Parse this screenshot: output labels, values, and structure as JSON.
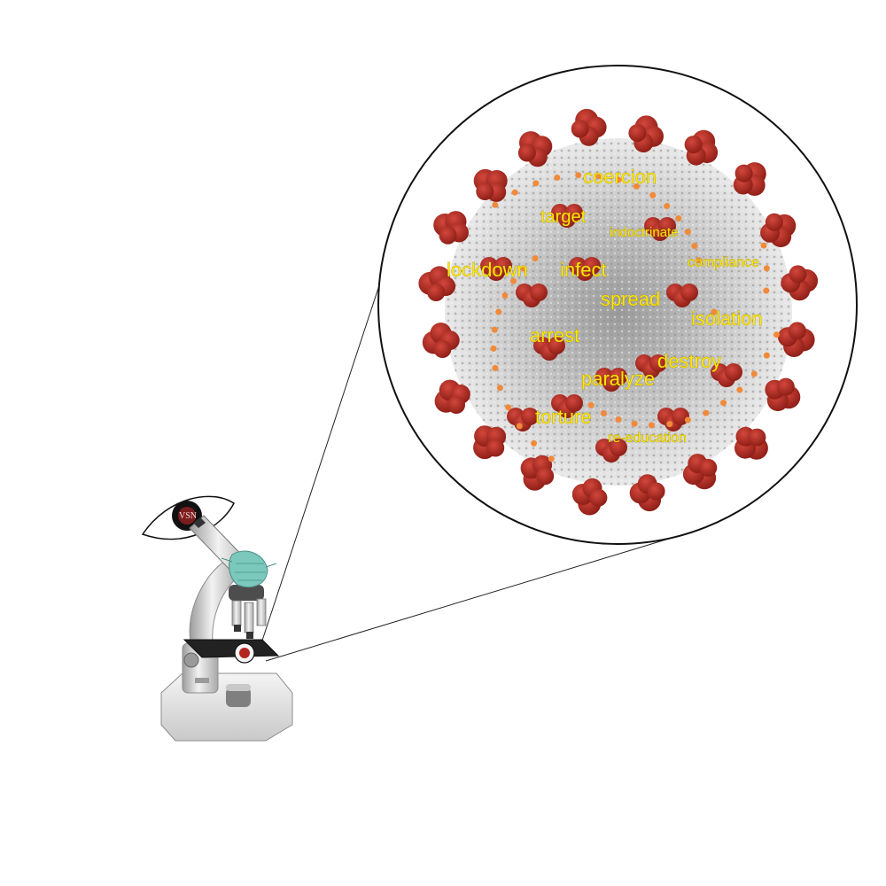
{
  "eye_label": "VSN",
  "words": [
    {
      "id": "coercion",
      "text": "coercion"
    },
    {
      "id": "target",
      "text": "target"
    },
    {
      "id": "indoctrinate",
      "text": "indoctrinate"
    },
    {
      "id": "compliance",
      "text": "compliance"
    },
    {
      "id": "lockdown",
      "text": "lockdown"
    },
    {
      "id": "infect",
      "text": "infect"
    },
    {
      "id": "spread",
      "text": "spread"
    },
    {
      "id": "isolation",
      "text": "isolation"
    },
    {
      "id": "arrest",
      "text": "arrest"
    },
    {
      "id": "destroy",
      "text": "destroy"
    },
    {
      "id": "paralyze",
      "text": "paralyze"
    },
    {
      "id": "torture",
      "text": "torture"
    },
    {
      "id": "re_education",
      "text": "re-education"
    }
  ],
  "colors": {
    "word_fill": "#ffe600",
    "spike": "#b3261e",
    "spike_dark": "#7e1712",
    "virus_body": "#bdbdbd",
    "orange_dot": "#f08a3a",
    "mask": "#7cc8bd"
  }
}
